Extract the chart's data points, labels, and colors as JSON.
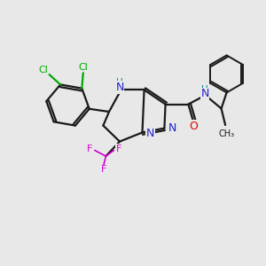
{
  "background_color": "#e8e8e8",
  "bond_color": "#1a1a1a",
  "n_color": "#2222cc",
  "o_color": "#dd0000",
  "f_color": "#cc00cc",
  "cl_color": "#00aa00",
  "h_color": "#008888",
  "figsize": [
    3.0,
    3.0
  ],
  "dpi": 100,
  "xlim": [
    0,
    10
  ],
  "ylim": [
    0,
    10
  ]
}
